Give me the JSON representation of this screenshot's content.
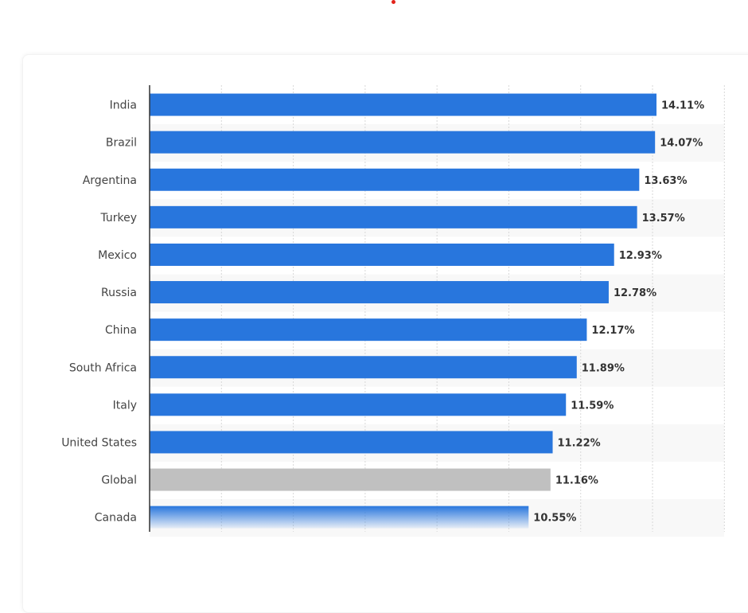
{
  "colors": {
    "primary_bar": "#2876dd",
    "highlight_bar": "#c0c0c0",
    "stripe": "#f8f8f8",
    "grid": "#d8d8d8",
    "axis": "#333333",
    "accent_dot": "#e2231a"
  },
  "chart_data": {
    "type": "bar",
    "orientation": "horizontal",
    "categories": [
      "India",
      "Brazil",
      "Argentina",
      "Turkey",
      "Mexico",
      "Russia",
      "China",
      "South Africa",
      "Italy",
      "United States",
      "Global",
      "Canada"
    ],
    "values": [
      14.11,
      14.07,
      13.63,
      13.57,
      12.93,
      12.78,
      12.17,
      11.89,
      11.59,
      11.22,
      11.16,
      10.55
    ],
    "value_labels": [
      "14.11%",
      "14.07%",
      "13.63%",
      "13.57%",
      "12.93%",
      "12.78%",
      "12.17%",
      "11.89%",
      "11.59%",
      "11.22%",
      "11.16%",
      "10.55%"
    ],
    "highlighted_category": "Global",
    "faded_categories": [
      "Canada"
    ],
    "xlim": [
      0,
      16
    ],
    "grid": true,
    "legend": "none"
  }
}
